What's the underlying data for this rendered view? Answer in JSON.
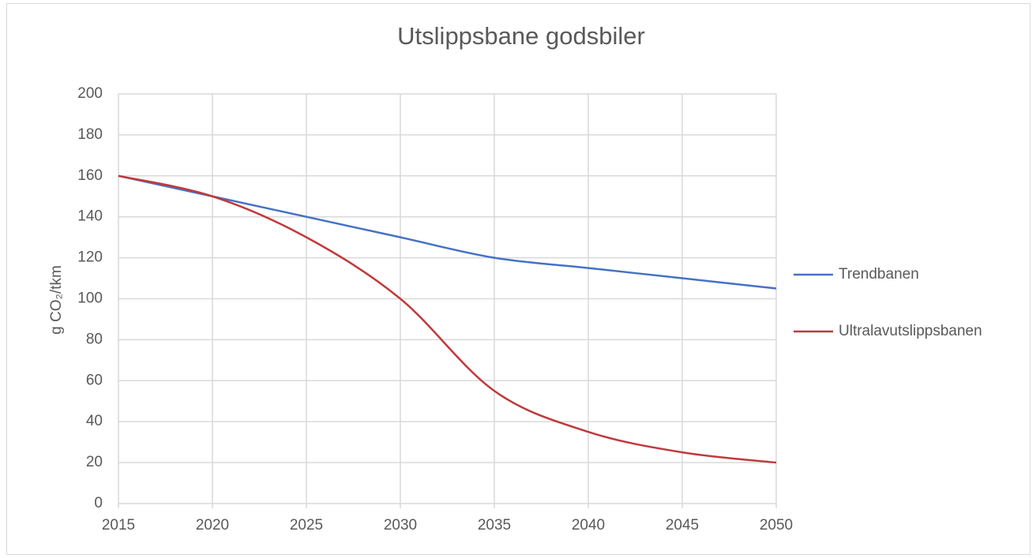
{
  "chart_data": {
    "type": "line",
    "title": "Utslippsbane godsbiler",
    "y_label": "g CO₂/tkm",
    "x": [
      2015,
      2020,
      2025,
      2030,
      2035,
      2040,
      2045,
      2050
    ],
    "series": [
      {
        "name": "Trendbanen",
        "color": "#4472c4",
        "values": [
          160,
          150,
          140,
          130,
          120,
          115,
          110,
          105
        ]
      },
      {
        "name": "Ultralavutslippsbanen",
        "color": "#c0393b",
        "values": [
          160,
          150,
          130,
          100,
          55,
          35,
          25,
          20
        ]
      }
    ],
    "xlim": [
      2015,
      2050
    ],
    "xticks": [
      2015,
      2020,
      2025,
      2030,
      2035,
      2040,
      2045,
      2050
    ],
    "ylim": [
      0,
      200
    ],
    "yticks": [
      0,
      20,
      40,
      60,
      80,
      100,
      120,
      140,
      160,
      180,
      200
    ],
    "grid": true,
    "smooth": true,
    "legend": "right"
  }
}
